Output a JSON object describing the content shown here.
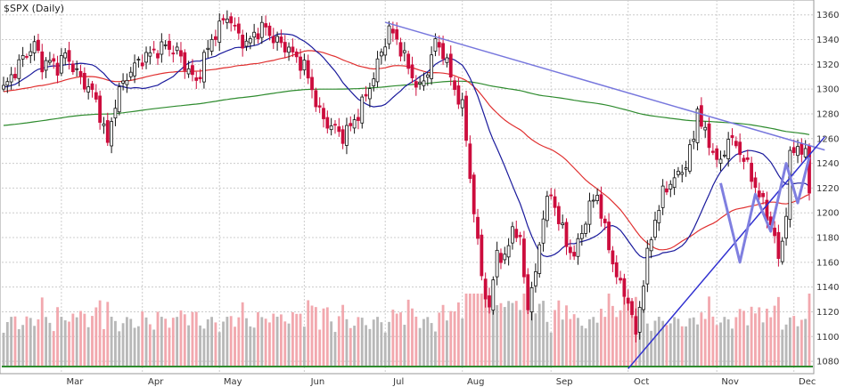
{
  "chart_data": {
    "type": "candlestick",
    "title": "$SPX (Daily)",
    "ylim": [
      1070,
      1372
    ],
    "y_ticks": [
      1080,
      1100,
      1120,
      1140,
      1160,
      1180,
      1200,
      1220,
      1240,
      1260,
      1280,
      1300,
      1320,
      1340,
      1360
    ],
    "x_range": [
      0,
      209
    ],
    "month_labels": [
      {
        "label": "Mar",
        "x": 15
      },
      {
        "label": "Apr",
        "x": 36
      },
      {
        "label": "May",
        "x": 56
      },
      {
        "label": "Jun",
        "x": 78
      },
      {
        "label": "Jul",
        "x": 99
      },
      {
        "label": "Aug",
        "x": 119
      },
      {
        "label": "Sep",
        "x": 142
      },
      {
        "label": "Oct",
        "x": 162
      },
      {
        "label": "Nov",
        "x": 185
      },
      {
        "label": "Dec",
        "x": 205
      }
    ],
    "close_anchors": [
      [
        0,
        1300
      ],
      [
        2,
        1310
      ],
      [
        5,
        1325
      ],
      [
        8,
        1336
      ],
      [
        10,
        1320
      ],
      [
        12,
        1322
      ],
      [
        14,
        1318
      ],
      [
        16,
        1328
      ],
      [
        18,
        1318
      ],
      [
        20,
        1308
      ],
      [
        23,
        1298
      ],
      [
        25,
        1280
      ],
      [
        27,
        1256
      ],
      [
        29,
        1290
      ],
      [
        31,
        1305
      ],
      [
        33,
        1315
      ],
      [
        36,
        1325
      ],
      [
        39,
        1330
      ],
      [
        42,
        1335
      ],
      [
        45,
        1330
      ],
      [
        48,
        1315
      ],
      [
        50,
        1305
      ],
      [
        52,
        1325
      ],
      [
        54,
        1340
      ],
      [
        56,
        1350
      ],
      [
        58,
        1360
      ],
      [
        60,
        1348
      ],
      [
        63,
        1335
      ],
      [
        65,
        1345
      ],
      [
        68,
        1350
      ],
      [
        70,
        1340
      ],
      [
        73,
        1335
      ],
      [
        76,
        1325
      ],
      [
        78,
        1318
      ],
      [
        80,
        1300
      ],
      [
        82,
        1280
      ],
      [
        84,
        1272
      ],
      [
        86,
        1268
      ],
      [
        88,
        1262
      ],
      [
        90,
        1270
      ],
      [
        92,
        1280
      ],
      [
        94,
        1295
      ],
      [
        96,
        1310
      ],
      [
        98,
        1330
      ],
      [
        100,
        1348
      ],
      [
        102,
        1340
      ],
      [
        104,
        1325
      ],
      [
        106,
        1310
      ],
      [
        108,
        1300
      ],
      [
        110,
        1315
      ],
      [
        112,
        1338
      ],
      [
        114,
        1330
      ],
      [
        115,
        1320
      ],
      [
        117,
        1300
      ],
      [
        119,
        1285
      ],
      [
        120,
        1260
      ],
      [
        122,
        1200
      ],
      [
        124,
        1150
      ],
      [
        126,
        1120
      ],
      [
        128,
        1170
      ],
      [
        130,
        1160
      ],
      [
        132,
        1190
      ],
      [
        134,
        1175
      ],
      [
        136,
        1125
      ],
      [
        138,
        1150
      ],
      [
        140,
        1200
      ],
      [
        142,
        1215
      ],
      [
        144,
        1195
      ],
      [
        146,
        1175
      ],
      [
        148,
        1165
      ],
      [
        150,
        1185
      ],
      [
        152,
        1205
      ],
      [
        154,
        1215
      ],
      [
        156,
        1185
      ],
      [
        158,
        1160
      ],
      [
        160,
        1140
      ],
      [
        162,
        1130
      ],
      [
        164,
        1100
      ],
      [
        165,
        1125
      ],
      [
        167,
        1165
      ],
      [
        169,
        1195
      ],
      [
        171,
        1215
      ],
      [
        173,
        1225
      ],
      [
        175,
        1230
      ],
      [
        177,
        1240
      ],
      [
        179,
        1260
      ],
      [
        180,
        1285
      ],
      [
        182,
        1262
      ],
      [
        184,
        1250
      ],
      [
        186,
        1238
      ],
      [
        188,
        1262
      ],
      [
        190,
        1253
      ],
      [
        192,
        1245
      ],
      [
        194,
        1228
      ],
      [
        196,
        1215
      ],
      [
        198,
        1198
      ],
      [
        199,
        1192
      ],
      [
        200,
        1180
      ],
      [
        201,
        1160
      ],
      [
        202,
        1180
      ],
      [
        203,
        1200
      ],
      [
        204,
        1245
      ],
      [
        206,
        1255
      ],
      [
        208,
        1245
      ],
      [
        209,
        1220
      ]
    ],
    "series": [
      {
        "kind": "ma",
        "period": 200,
        "color": "#2e8b2e"
      },
      {
        "kind": "ma",
        "period": 50,
        "color": "#e03030"
      },
      {
        "kind": "ma",
        "period": 20,
        "color": "#1a1a9c"
      }
    ],
    "annotations": [
      {
        "kind": "trendline",
        "color": "#7777dd",
        "points": [
          [
            99,
            1354
          ],
          [
            205,
            1258
          ]
        ]
      },
      {
        "kind": "trendline",
        "color": "#3030d0",
        "points": [
          [
            162,
            1074
          ],
          [
            205,
            1232
          ]
        ]
      },
      {
        "kind": "zigzag",
        "color": "#7f7fe0",
        "points": [
          [
            186,
            1224
          ],
          [
            191,
            1160
          ],
          [
            195,
            1215
          ],
          [
            199,
            1185
          ],
          [
            203,
            1240
          ],
          [
            206,
            1208
          ],
          [
            209,
            1245
          ]
        ]
      }
    ],
    "colors": {
      "up_candle": "#111111",
      "down_candle": "#cc0d3d",
      "volume_up": "#b8b8b8",
      "volume_down": "#f2a8ae",
      "grid": "#cccccc",
      "baseline": "#2e8b2e"
    }
  }
}
